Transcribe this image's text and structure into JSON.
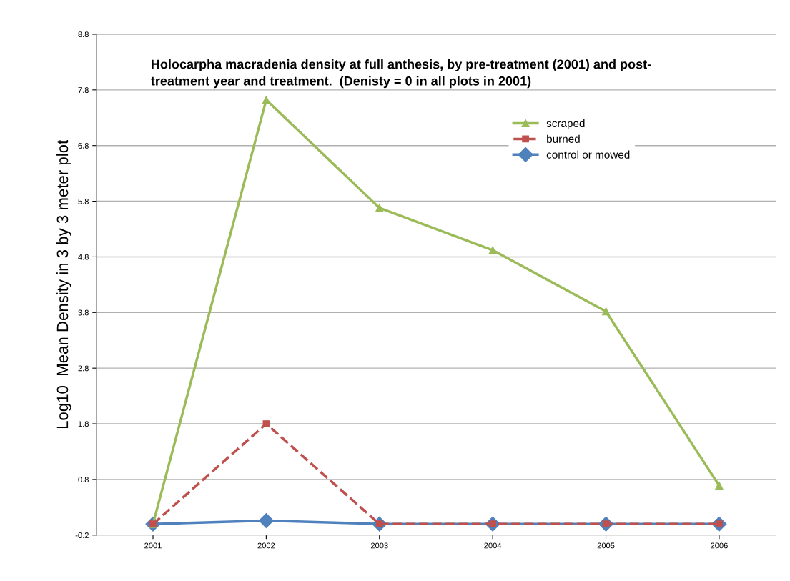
{
  "chart_data": {
    "type": "line",
    "title": "Holocarpha macradenia density at full anthesis, by pre-treatment (2001) and post-\ntreatment year and treatment.  (Denisty = 0 in all plots in 2001)",
    "ylabel": "Log10  Mean Density in 3 by 3 meter plot",
    "categories": [
      "2001",
      "2002",
      "2003",
      "2004",
      "2005",
      "2006"
    ],
    "series": [
      {
        "name": "scraped",
        "color": "#9bbb59",
        "marker": "triangle",
        "line_style": "solid",
        "values": [
          0.0,
          7.62,
          5.68,
          4.92,
          3.82,
          0.69
        ]
      },
      {
        "name": "burned",
        "color": "#c0504d",
        "marker": "square",
        "line_style": "dashed",
        "values": [
          0.0,
          1.8,
          0.0,
          0.0,
          0.0,
          0.0
        ]
      },
      {
        "name": "control or mowed",
        "color": "#4f81bd",
        "marker": "diamond",
        "line_style": "solid",
        "values": [
          0.0,
          0.06,
          0.0,
          0.0,
          0.0,
          0.0
        ]
      }
    ],
    "ylim": [
      -0.2,
      8.8
    ],
    "yticks": [
      -0.2,
      0.8,
      1.8,
      2.8,
      3.8,
      4.8,
      5.8,
      6.8,
      7.8,
      8.8
    ],
    "grid": "y",
    "legend": "top right"
  }
}
